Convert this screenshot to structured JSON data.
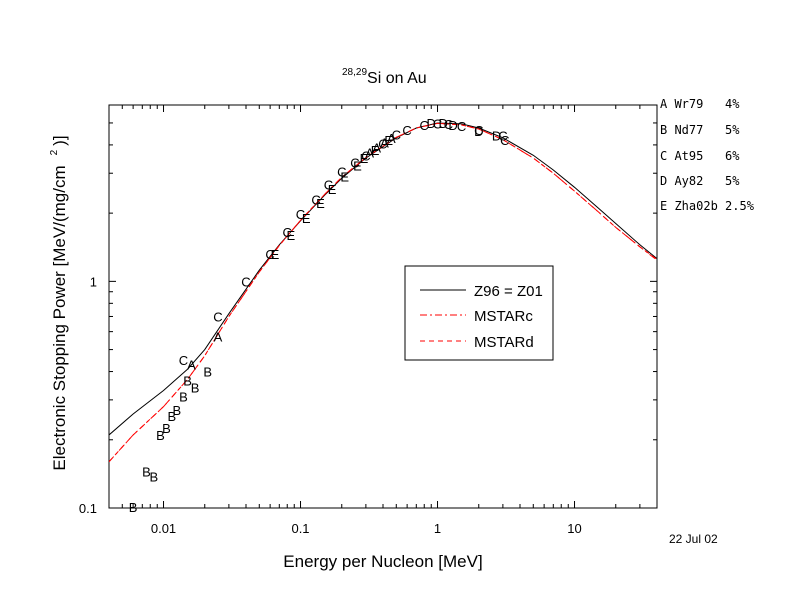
{
  "chart_data": {
    "type": "line",
    "title": {
      "superscript": "28,29",
      "text": "Si on Au"
    },
    "xlabel": "Energy per Nucleon [MeV]",
    "ylabel": "Electronic Stopping Power [MeV/(mg/cm",
    "ylabel_superscript": "2",
    "ylabel_suffix": ")]",
    "x_scale": "log",
    "y_scale": "log",
    "xlim": [
      0.004,
      40
    ],
    "ylim": [
      0.1,
      6
    ],
    "x_ticks": [
      {
        "value": 0.01,
        "label": "0.01"
      },
      {
        "value": 0.1,
        "label": "0.1"
      },
      {
        "value": 1,
        "label": "1"
      },
      {
        "value": 10,
        "label": "10"
      }
    ],
    "y_ticks": [
      {
        "value": 0.1,
        "label": "0.1"
      },
      {
        "value": 1,
        "label": "1"
      }
    ],
    "grid": false,
    "date": "22 Jul 02",
    "references": [
      {
        "marker": "A",
        "text": "A Wr79   4%"
      },
      {
        "marker": "B",
        "text": "B Nd77   5%"
      },
      {
        "marker": "C",
        "text": "C At95   6%"
      },
      {
        "marker": "D",
        "text": "D Ay82   5%"
      },
      {
        "marker": "E",
        "text": "E Zha02b 2.5%"
      }
    ],
    "legend": {
      "placement": "center-right",
      "entries": [
        {
          "label": "Z96 = Z01",
          "color": "#000000",
          "dash": "solid"
        },
        {
          "label": "MSTARc",
          "color": "#ff0000",
          "dash": "dashdot"
        },
        {
          "label": "MSTARd",
          "color": "#ff0000",
          "dash": "dashed"
        }
      ]
    },
    "series": [
      {
        "name": "Z96 = Z01",
        "color": "#000000",
        "dash": "solid",
        "x": [
          0.004,
          0.006,
          0.01,
          0.015,
          0.02,
          0.03,
          0.05,
          0.07,
          0.1,
          0.15,
          0.2,
          0.3,
          0.5,
          0.7,
          1,
          1.5,
          2,
          3,
          5,
          7,
          10,
          15,
          20,
          30,
          40
        ],
        "y": [
          0.21,
          0.26,
          0.33,
          0.41,
          0.5,
          0.72,
          1.12,
          1.45,
          1.85,
          2.4,
          2.85,
          3.5,
          4.3,
          4.75,
          5.0,
          4.95,
          4.75,
          4.3,
          3.6,
          3.1,
          2.6,
          2.1,
          1.8,
          1.45,
          1.26
        ]
      },
      {
        "name": "MSTARc",
        "color": "#ff0000",
        "dash": "dashdot",
        "x": [
          0.004,
          0.006,
          0.01,
          0.015,
          0.02,
          0.03,
          0.05,
          0.07,
          0.1,
          0.15,
          0.2,
          0.3,
          0.5,
          0.7,
          1,
          1.5,
          2,
          3,
          5,
          7,
          10,
          15,
          20,
          30,
          40
        ],
        "y": [
          0.16,
          0.21,
          0.28,
          0.37,
          0.47,
          0.7,
          1.1,
          1.44,
          1.86,
          2.42,
          2.88,
          3.52,
          4.32,
          4.75,
          4.98,
          4.9,
          4.7,
          4.22,
          3.5,
          3.0,
          2.5,
          2.02,
          1.73,
          1.42,
          1.24
        ]
      },
      {
        "name": "MSTARd",
        "color": "#ff0000",
        "dash": "dashed",
        "x": [
          0.004,
          0.006,
          0.01,
          0.015,
          0.02,
          0.03,
          0.05,
          0.07,
          0.1,
          0.15,
          0.2,
          0.3,
          0.5,
          0.7,
          1,
          1.5,
          2,
          3,
          5,
          7,
          10,
          15,
          20,
          30,
          40
        ],
        "y": [
          0.16,
          0.21,
          0.28,
          0.37,
          0.47,
          0.7,
          1.1,
          1.44,
          1.86,
          2.42,
          2.88,
          3.52,
          4.32,
          4.75,
          4.98,
          4.9,
          4.7,
          4.22,
          3.5,
          3.0,
          2.5,
          2.02,
          1.73,
          1.42,
          1.25
        ]
      }
    ],
    "points": [
      {
        "label": "A",
        "x": 0.025,
        "y": 0.57
      },
      {
        "label": "A",
        "x": 0.016,
        "y": 0.43
      },
      {
        "label": "A",
        "x": 0.32,
        "y": 3.7
      },
      {
        "label": "A",
        "x": 0.36,
        "y": 3.9
      },
      {
        "label": "A",
        "x": 0.41,
        "y": 4.1
      },
      {
        "label": "A",
        "x": 0.46,
        "y": 4.3
      },
      {
        "label": "B",
        "x": 0.006,
        "y": 0.101
      },
      {
        "label": "B",
        "x": 0.0075,
        "y": 0.145
      },
      {
        "label": "B",
        "x": 0.0085,
        "y": 0.138
      },
      {
        "label": "B",
        "x": 0.0095,
        "y": 0.21
      },
      {
        "label": "B",
        "x": 0.0105,
        "y": 0.225
      },
      {
        "label": "B",
        "x": 0.0115,
        "y": 0.255
      },
      {
        "label": "B",
        "x": 0.0125,
        "y": 0.27
      },
      {
        "label": "B",
        "x": 0.014,
        "y": 0.31
      },
      {
        "label": "B",
        "x": 0.015,
        "y": 0.365
      },
      {
        "label": "B",
        "x": 0.017,
        "y": 0.34
      },
      {
        "label": "B",
        "x": 0.021,
        "y": 0.4
      },
      {
        "label": "C",
        "x": 0.014,
        "y": 0.45
      },
      {
        "label": "C",
        "x": 0.025,
        "y": 0.7
      },
      {
        "label": "C",
        "x": 0.04,
        "y": 1.0
      },
      {
        "label": "C",
        "x": 0.06,
        "y": 1.32
      },
      {
        "label": "C",
        "x": 0.08,
        "y": 1.65
      },
      {
        "label": "C",
        "x": 0.1,
        "y": 1.98
      },
      {
        "label": "C",
        "x": 0.13,
        "y": 2.3
      },
      {
        "label": "C",
        "x": 0.16,
        "y": 2.68
      },
      {
        "label": "C",
        "x": 0.2,
        "y": 3.05
      },
      {
        "label": "C",
        "x": 0.25,
        "y": 3.35
      },
      {
        "label": "C",
        "x": 0.3,
        "y": 3.6
      },
      {
        "label": "C",
        "x": 0.4,
        "y": 4.05
      },
      {
        "label": "C",
        "x": 0.5,
        "y": 4.45
      },
      {
        "label": "C",
        "x": 0.6,
        "y": 4.65
      },
      {
        "label": "C",
        "x": 0.8,
        "y": 4.9
      },
      {
        "label": "C",
        "x": 1.0,
        "y": 4.98
      },
      {
        "label": "C",
        "x": 1.2,
        "y": 4.95
      },
      {
        "label": "C",
        "x": 1.5,
        "y": 4.85
      },
      {
        "label": "C",
        "x": 2.0,
        "y": 4.65
      },
      {
        "label": "C",
        "x": 3.0,
        "y": 4.4
      },
      {
        "label": "C",
        "x": 3.1,
        "y": 4.2
      },
      {
        "label": "D",
        "x": 0.9,
        "y": 5.0
      },
      {
        "label": "D",
        "x": 1.1,
        "y": 5.0
      },
      {
        "label": "D",
        "x": 1.3,
        "y": 4.9
      },
      {
        "label": "D",
        "x": 2.0,
        "y": 4.6
      },
      {
        "label": "D",
        "x": 2.7,
        "y": 4.4
      },
      {
        "label": "E",
        "x": 0.065,
        "y": 1.32
      },
      {
        "label": "E",
        "x": 0.085,
        "y": 1.6
      },
      {
        "label": "E",
        "x": 0.11,
        "y": 1.9
      },
      {
        "label": "E",
        "x": 0.14,
        "y": 2.22
      },
      {
        "label": "E",
        "x": 0.17,
        "y": 2.55
      },
      {
        "label": "E",
        "x": 0.21,
        "y": 2.9
      },
      {
        "label": "E",
        "x": 0.26,
        "y": 3.25
      },
      {
        "label": "E",
        "x": 0.29,
        "y": 3.5
      },
      {
        "label": "E",
        "x": 0.35,
        "y": 3.8
      },
      {
        "label": "E",
        "x": 0.44,
        "y": 4.2
      }
    ]
  }
}
